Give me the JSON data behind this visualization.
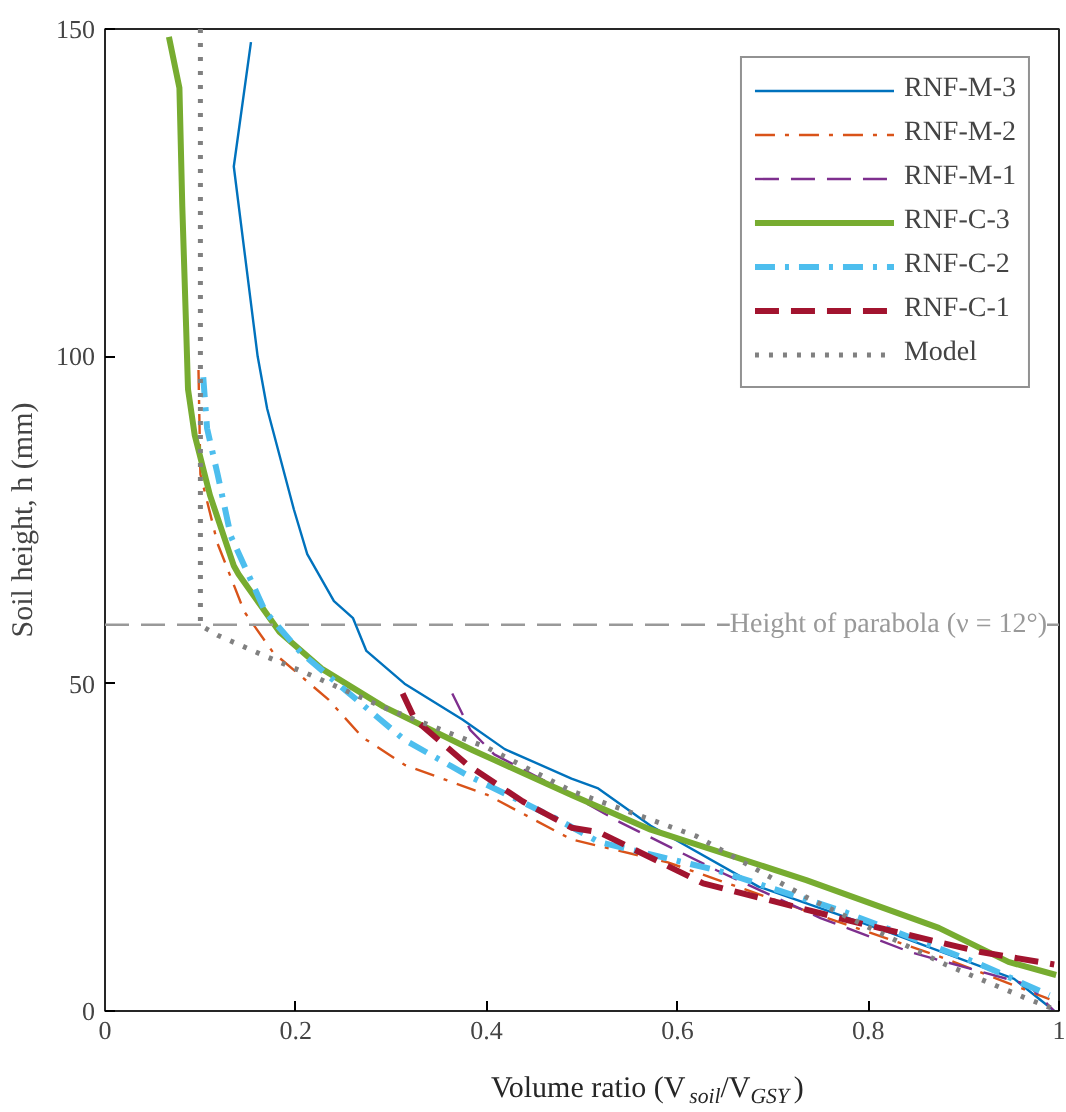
{
  "chart_data": {
    "type": "line",
    "xlabel": "Volume ratio (V$_{soil}$/V$_{GSY}$)",
    "ylabel": "Soil height, h (mm)",
    "xlim": [
      0,
      1
    ],
    "ylim": [
      0,
      150
    ],
    "xticks": [
      0,
      0.2,
      0.4,
      0.6,
      0.8,
      1
    ],
    "yticks": [
      0,
      50,
      100,
      150
    ],
    "grid": false,
    "legend": "top right",
    "series": [
      {
        "name": "RNF-M-3",
        "color": "#0072bd",
        "line_style": "solid",
        "x": [
          0.153,
          0.135,
          0.16,
          0.17,
          0.198,
          0.212,
          0.24,
          0.26,
          0.274,
          0.314,
          0.375,
          0.419,
          0.489,
          0.517,
          0.572,
          0.685,
          0.822,
          0.953,
          0.995
        ],
        "values": [
          148,
          129,
          100,
          92,
          76.6,
          69.8,
          62.6,
          60,
          55,
          50,
          44.5,
          40,
          35.5,
          34,
          28.3,
          19,
          12,
          4.9,
          0
        ]
      },
      {
        "name": "RNF-M-2",
        "color": "#d95319",
        "line_style": "dashdot",
        "x": [
          0.098,
          0.1,
          0.118,
          0.146,
          0.176,
          0.234,
          0.27,
          0.314,
          0.401,
          0.489,
          0.59,
          0.735,
          0.881,
          0.99
        ],
        "values": [
          97.9,
          82,
          71.4,
          61,
          54.8,
          47.6,
          41.8,
          37.6,
          33,
          26.2,
          22.7,
          15.3,
          8,
          1.8
        ]
      },
      {
        "name": "RNF-M-1",
        "color": "#7e2f8e",
        "line_style": "dashed",
        "x": [
          0.364,
          0.383,
          0.408,
          0.489,
          0.539,
          0.641,
          0.75,
          0.844,
          0.968,
          0.995
        ],
        "values": [
          48.5,
          42.9,
          39.2,
          33,
          28.9,
          21.5,
          14.2,
          9,
          4,
          0
        ]
      },
      {
        "name": "RNF-C-3",
        "color": "#77ac30",
        "line_style": "solid",
        "x": [
          0.067,
          0.078,
          0.081,
          0.085,
          0.087,
          0.094,
          0.11,
          0.135,
          0.14,
          0.183,
          0.227,
          0.292,
          0.386,
          0.489,
          0.572,
          0.735,
          0.874,
          0.947,
          0.997
        ],
        "values": [
          148.8,
          141,
          123,
          104.6,
          95,
          88,
          78.8,
          68,
          66.7,
          57.9,
          52.3,
          46.5,
          39.8,
          33,
          27.7,
          20,
          12.7,
          7.5,
          5.5
        ]
      },
      {
        "name": "RNF-C-2",
        "color": "#4dbeee",
        "line_style": "dashdot",
        "x": [
          0.103,
          0.107,
          0.118,
          0.132,
          0.168,
          0.205,
          0.256,
          0.314,
          0.38,
          0.474,
          0.518,
          0.641,
          0.772,
          0.918,
          0.99
        ],
        "values": [
          96.8,
          89,
          82,
          72.5,
          61,
          54.8,
          48.5,
          41.4,
          36,
          29.3,
          25.8,
          21.5,
          15.3,
          7.1,
          2.4
        ]
      },
      {
        "name": "RNF-C-1",
        "color": "#a2142f",
        "line_style": "dashed",
        "x": [
          0.312,
          0.325,
          0.38,
          0.438,
          0.489,
          0.518,
          0.627,
          0.794,
          0.918,
          0.995
        ],
        "values": [
          48.5,
          44.5,
          37.6,
          32,
          28,
          27.3,
          19.5,
          13.3,
          9,
          7.1
        ]
      },
      {
        "name": "Model",
        "color": "#808080",
        "line_style": "dotted",
        "x": [
          0.1,
          0.1,
          0.118,
          0.168,
          0.219,
          0.29,
          0.401,
          0.489,
          0.62,
          0.735,
          0.881,
          0.968,
          1
        ],
        "values": [
          150,
          58.9,
          57.4,
          54.2,
          51.1,
          46.5,
          40.2,
          33.6,
          26.7,
          17.4,
          7.1,
          1.8,
          0
        ]
      }
    ],
    "ref_lines": [
      {
        "axis": "y",
        "value": 59,
        "color": "#999999",
        "line_style": "dashed"
      }
    ],
    "annotations": [
      {
        "text": "Height of parabola (ν = 12°)",
        "x": 1,
        "y": 59
      }
    ]
  }
}
